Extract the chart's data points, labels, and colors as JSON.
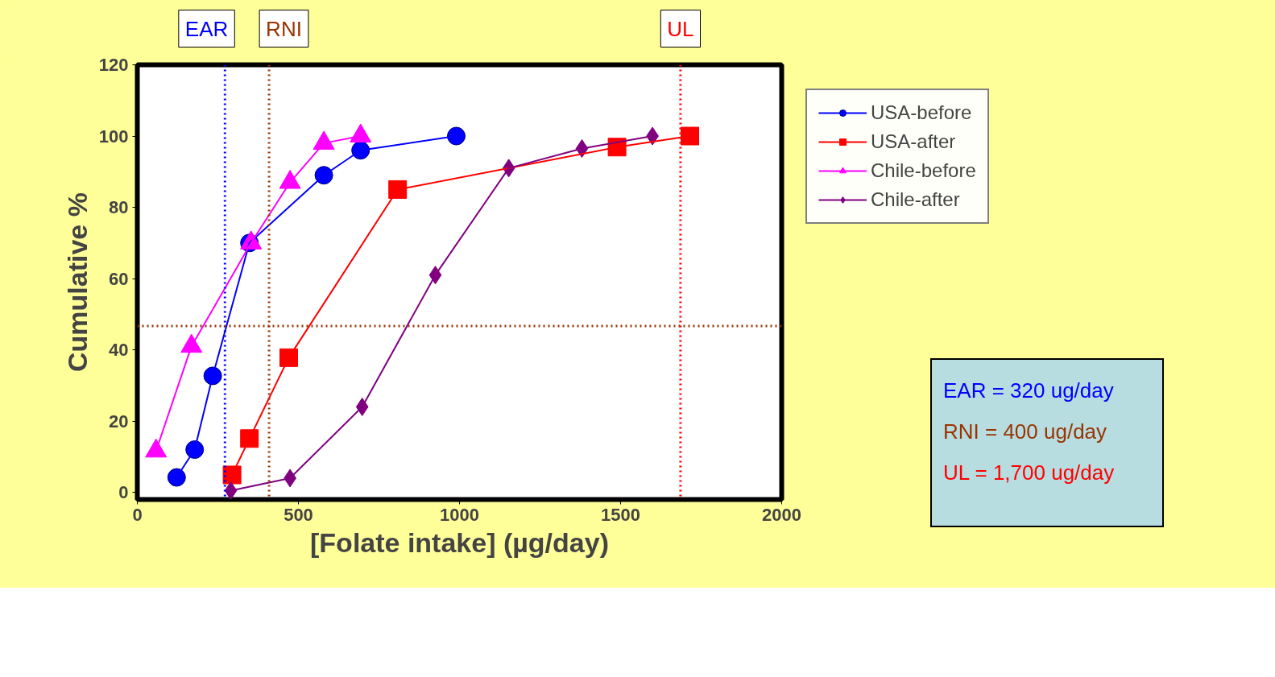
{
  "chart_data": {
    "type": "line",
    "xlabel": "[Folate intake] (µg/day)",
    "ylabel": "Cumulative %",
    "xlim": [
      0,
      2000
    ],
    "xticks": [
      0,
      500,
      1000,
      1500,
      2000
    ],
    "ylim": [
      -2,
      120
    ],
    "yticks": [
      0,
      20,
      40,
      60,
      80,
      100,
      120
    ],
    "grid": false,
    "legend": "right",
    "line_style": "solid",
    "series": [
      {
        "name": "USA-before",
        "color": "#0000ff",
        "marker": "circle",
        "x": [
          122,
          178,
          234,
          348,
          579,
          693,
          990
        ],
        "values": [
          4.2,
          12,
          32.7,
          70,
          89,
          96,
          100
        ]
      },
      {
        "name": "USA-after",
        "color": "#ff0000",
        "marker": "square",
        "x": [
          294,
          348,
          470,
          808,
          1489,
          1715
        ],
        "values": [
          4.9,
          15.1,
          37.8,
          85,
          96.9,
          100
        ]
      },
      {
        "name": "Chile-before",
        "color": "#ff00ff",
        "marker": "triangle",
        "x": [
          58,
          168,
          353,
          474,
          579,
          693
        ],
        "values": [
          11.6,
          41,
          70,
          87,
          98,
          100
        ]
      },
      {
        "name": "Chile-after",
        "color": "#800080",
        "marker": "diamond",
        "x": [
          290,
          474,
          698,
          925,
          1153,
          1380,
          1599
        ],
        "values": [
          0.5,
          4,
          24,
          61,
          91,
          96.5,
          100
        ]
      }
    ],
    "ref_lines": [
      {
        "axis": "x",
        "value": 272,
        "label": "EAR",
        "color": "#0000ff",
        "line_style": "dotted"
      },
      {
        "axis": "x",
        "value": 409,
        "label": "RNI",
        "color": "#993300",
        "line_style": "dotted"
      },
      {
        "axis": "x",
        "value": 1686,
        "label": "UL",
        "color": "#ff0000",
        "line_style": "dotted"
      },
      {
        "axis": "y",
        "value": 46.7,
        "label": null,
        "color": "#993300",
        "line_style": "dotted"
      }
    ],
    "annotations": [
      "EAR = 320 ug/day",
      "RNI = 400 ug/day",
      "UL = 1,700 ug/day"
    ]
  }
}
